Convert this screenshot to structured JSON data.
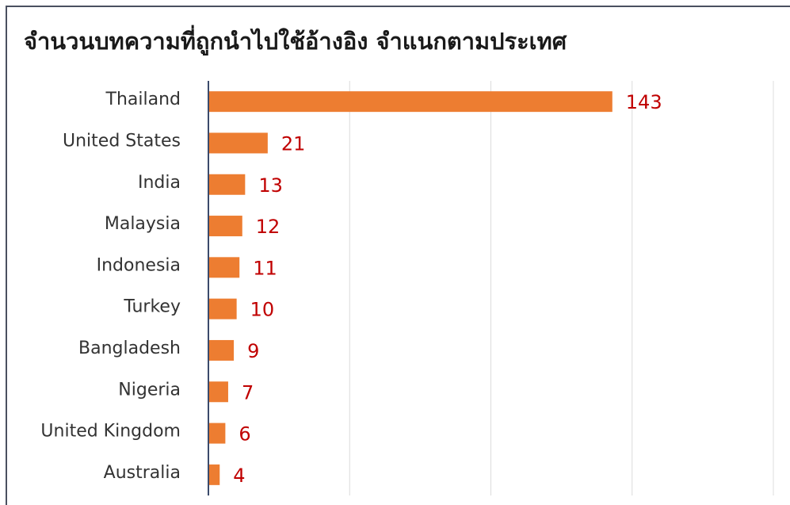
{
  "chart_data": {
    "type": "bar",
    "orientation": "horizontal",
    "title": "จำนวนบทความที่ถูกนำไปใช้อ้างอิง จำแนกตามประเทศ",
    "categories": [
      "Thailand",
      "United States",
      "India",
      "Malaysia",
      "Indonesia",
      "Turkey",
      "Bangladesh",
      "Nigeria",
      "United Kingdom",
      "Australia"
    ],
    "values": [
      143,
      21,
      13,
      12,
      11,
      10,
      9,
      7,
      6,
      4
    ],
    "color": "#ed7d31",
    "label_color": "#c00000",
    "xlim": [
      0,
      200
    ],
    "xticks": [
      0,
      50,
      100,
      150,
      200
    ],
    "grid": true
  }
}
